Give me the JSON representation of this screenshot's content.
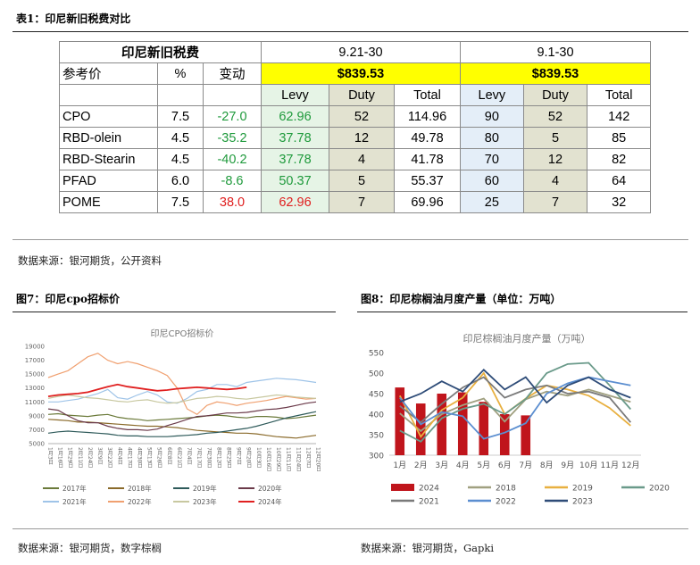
{
  "table_title": "表1：印尼新旧税费对比",
  "table": {
    "header_main": "印尼新旧税费",
    "ref_price": "参考价",
    "pct": "%",
    "change": "变动",
    "period1": "9.21-30",
    "period2": "9.1-30",
    "price1": "$839.53",
    "price2": "$839.53",
    "cols": [
      "Levy",
      "Duty",
      "Total",
      "Levy",
      "Duty",
      "Total"
    ],
    "rows": [
      {
        "name": "CPO",
        "pct": "7.5",
        "change": "-27.0",
        "levy1": "62.96",
        "duty1": "52",
        "total1": "114.96",
        "levy2": "90",
        "duty2": "52",
        "total2": "142"
      },
      {
        "name": "RBD-olein",
        "pct": "4.5",
        "change": "-35.2",
        "levy1": "37.78",
        "duty1": "12",
        "total1": "49.78",
        "levy2": "80",
        "duty2": "5",
        "total2": "85"
      },
      {
        "name": "RBD-Stearin",
        "pct": "4.5",
        "change": "-40.2",
        "levy1": "37.78",
        "duty1": "4",
        "total1": "41.78",
        "levy2": "70",
        "duty2": "12",
        "total2": "82"
      },
      {
        "name": "PFAD",
        "pct": "6.0",
        "change": "-8.6",
        "levy1": "50.37",
        "duty1": "5",
        "total1": "55.37",
        "levy2": "60",
        "duty2": "4",
        "total2": "64"
      },
      {
        "name": "POME",
        "pct": "7.5",
        "change": "38.0",
        "levy1": "62.96",
        "duty1": "7",
        "total1": "69.96",
        "levy2": "25",
        "duty2": "7",
        "total2": "32"
      }
    ]
  },
  "table_source": "数据来源：银河期货，公开资料",
  "fig7_title": "图7：印尼cpo招标价",
  "fig8_title": "图8：印尼棕榈油月度产量（单位：万吨）",
  "fig7_source": "数据来源：银河期货，数字棕榈",
  "fig8_source": "数据来源：银河期货，Gapki",
  "chart_data": [
    {
      "type": "line",
      "title": "印尼CPO招标价",
      "ylim": [
        5000,
        19000
      ],
      "yticks": [
        "19000",
        "17000",
        "15000",
        "13000",
        "11000",
        "9000",
        "7000",
        "5000"
      ],
      "xticks": [
        "1月3日",
        "1月16日",
        "1月29日",
        "2月11日",
        "2月24日",
        "3月9日",
        "3月22日",
        "4月4日",
        "4月17日",
        "4月30日",
        "5月13日",
        "5月26日",
        "6月8日",
        "6月21日",
        "7月4日",
        "7月17日",
        "7月30日",
        "8月12日",
        "8月25日",
        "9月7日",
        "9月20日",
        "10月3日",
        "10月16日",
        "10月29日",
        "11月11日",
        "11月24日",
        "12月7日",
        "12月20日"
      ],
      "series": [
        {
          "name": "2017年",
          "color": "#6b7a3a",
          "values": [
            9200,
            9300,
            9100,
            9000,
            8900,
            9100,
            9200,
            8800,
            8600,
            8500,
            8300,
            8400,
            8500,
            8600,
            8700,
            8800,
            9000,
            9100,
            9000,
            8800,
            8700,
            8900,
            8900,
            8800,
            8600,
            8700,
            8900,
            9100
          ]
        },
        {
          "name": "2018年",
          "color": "#8a6a2a",
          "values": [
            8500,
            8400,
            8300,
            8100,
            8100,
            8000,
            7900,
            7800,
            7700,
            7600,
            7500,
            7500,
            7400,
            7300,
            7100,
            6900,
            6800,
            6700,
            6600,
            6500,
            6500,
            6400,
            6200,
            6000,
            5900,
            5800,
            6000,
            6200
          ]
        },
        {
          "name": "2019年",
          "color": "#2e5a5a",
          "values": [
            6500,
            6700,
            6800,
            6700,
            6600,
            6500,
            6400,
            6200,
            6100,
            6100,
            6000,
            6000,
            6000,
            6100,
            6200,
            6300,
            6500,
            6600,
            6800,
            7000,
            7200,
            7500,
            7900,
            8300,
            8700,
            9000,
            9300,
            9600
          ]
        },
        {
          "name": "2020年",
          "color": "#6b3a4a",
          "values": [
            10000,
            9800,
            9000,
            8300,
            8000,
            8000,
            7500,
            7200,
            7000,
            7000,
            6900,
            7100,
            7600,
            8000,
            8500,
            8900,
            9000,
            9200,
            9400,
            9400,
            9500,
            9700,
            9900,
            10000,
            10200,
            10500,
            10800,
            11000
          ]
        },
        {
          "name": "2021年",
          "color": "#9fc4e8",
          "values": [
            11000,
            11000,
            11200,
            11400,
            11800,
            12200,
            12800,
            11600,
            11400,
            12000,
            12500,
            12000,
            11000,
            10800,
            11500,
            12500,
            12800,
            13500,
            13500,
            13200,
            13800,
            14000,
            14200,
            14400,
            14300,
            14200,
            14000,
            13800
          ]
        },
        {
          "name": "2022年",
          "color": "#f0a070",
          "values": [
            14500,
            15000,
            15500,
            16500,
            17500,
            18000,
            17000,
            16500,
            16800,
            16500,
            16000,
            15500,
            14800,
            13000,
            10000,
            9200,
            10500,
            11000,
            10800,
            10500,
            10800,
            11000,
            11200,
            11500,
            11800,
            11600,
            11400,
            11500
          ]
        },
        {
          "name": "2023年",
          "color": "#c8c8a0",
          "values": [
            11500,
            11800,
            12000,
            11800,
            11600,
            11500,
            11300,
            11100,
            11000,
            11200,
            11300,
            11000,
            10800,
            10900,
            11200,
            11500,
            11600,
            11800,
            11700,
            11500,
            11400,
            11600,
            11800,
            12000,
            11900,
            11700,
            11600,
            11500
          ]
        },
        {
          "name": "2024年",
          "color": "#e02020",
          "values": [
            11800,
            12000,
            12100,
            12200,
            12400,
            12800,
            13200,
            13500,
            13200,
            13000,
            12800,
            12600,
            12700,
            12900,
            13000,
            13100,
            13000,
            12900,
            12800,
            12900,
            13100
          ]
        }
      ]
    },
    {
      "type": "bar+line",
      "title": "印尼棕榈油月度产量（万吨）",
      "ylim": [
        300,
        550
      ],
      "yticks": [
        "550",
        "500",
        "450",
        "400",
        "350",
        "300"
      ],
      "categories": [
        "1月",
        "2月",
        "3月",
        "4月",
        "5月",
        "6月",
        "7月",
        "8月",
        "9月",
        "10月",
        "11月",
        "12月"
      ],
      "bar_series": {
        "name": "2024",
        "color": "#c0151c",
        "values": [
          465,
          426,
          450,
          453,
          430,
          400,
          397
        ]
      },
      "series": [
        {
          "name": "2018",
          "color": "#a0a080",
          "values": [
            402,
            359,
            400,
            422,
            438,
            382,
            436,
            455,
            445,
            460,
            445,
            430
          ]
        },
        {
          "name": "2019",
          "color": "#e8b040",
          "values": [
            445,
            345,
            410,
            440,
            500,
            400,
            438,
            470,
            460,
            445,
            415,
            372
          ]
        },
        {
          "name": "2020",
          "color": "#6a9a8a",
          "values": [
            360,
            333,
            390,
            413,
            425,
            400,
            437,
            500,
            522,
            525,
            470,
            412
          ]
        },
        {
          "name": "2021",
          "color": "#7a7a7a",
          "values": [
            420,
            380,
            425,
            465,
            490,
            440,
            460,
            470,
            450,
            455,
            440,
            380
          ]
        },
        {
          "name": "2022",
          "color": "#5b8ed0",
          "values": [
            440,
            375,
            405,
            395,
            340,
            355,
            378,
            450,
            475,
            490,
            480,
            470
          ]
        },
        {
          "name": "2023",
          "color": "#2e4c78",
          "values": [
            430,
            450,
            480,
            455,
            508,
            460,
            490,
            428,
            470,
            490,
            460,
            440
          ]
        }
      ]
    }
  ]
}
